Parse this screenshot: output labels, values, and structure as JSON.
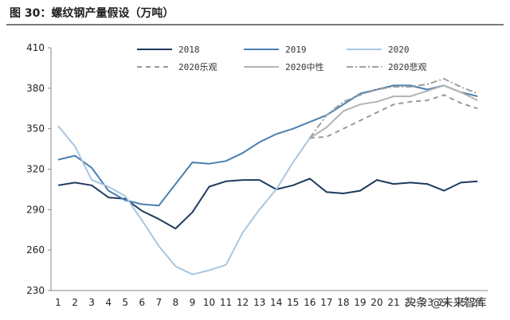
{
  "figure": {
    "title": "图 30：螺纹钢产量假设（万吨）"
  },
  "watermark": "头条 @未来智库",
  "chart_data": {
    "type": "line",
    "title": "图 30：螺纹钢产量假设（万吨）",
    "xlabel": "",
    "ylabel": "",
    "ylim": [
      230,
      410
    ],
    "yticks": [
      230,
      260,
      290,
      320,
      350,
      380,
      410
    ],
    "x": [
      1,
      2,
      3,
      4,
      5,
      6,
      7,
      8,
      9,
      10,
      11,
      12,
      13,
      14,
      15,
      16,
      17,
      18,
      19,
      20,
      21,
      22,
      23,
      24,
      25,
      26
    ],
    "xtick_labels": [
      "1",
      "2",
      "3",
      "4",
      "5",
      "6",
      "7",
      "8",
      "9",
      "10",
      "11",
      "12",
      "13",
      "14",
      "15",
      "16",
      "17",
      "18",
      "19",
      "20",
      "21",
      "22",
      "23",
      "24",
      "25",
      "26"
    ],
    "grid": false,
    "legend_position": "top",
    "series": [
      {
        "name": "2018",
        "color": "#1f3a5f",
        "dash": "solid",
        "x": [
          1,
          2,
          3,
          4,
          5,
          6,
          7,
          8,
          9,
          10,
          11,
          12,
          13,
          14,
          15,
          16,
          17,
          18,
          19,
          20,
          21,
          22,
          23,
          24,
          25,
          26
        ],
        "values": [
          308,
          310,
          308,
          299,
          298,
          289,
          283,
          276,
          288,
          307,
          311,
          312,
          312,
          305,
          308,
          313,
          303,
          302,
          304,
          312,
          309,
          310,
          309,
          304,
          310,
          311
        ]
      },
      {
        "name": "2019",
        "color": "#4a7fb0",
        "dash": "solid",
        "x": [
          1,
          2,
          3,
          4,
          5,
          6,
          7,
          8,
          9,
          10,
          11,
          12,
          13,
          14,
          15,
          16,
          17,
          18,
          19,
          20,
          21,
          22,
          23,
          24,
          25,
          26
        ],
        "values": [
          327,
          330,
          321,
          304,
          297,
          294,
          293,
          309,
          325,
          324,
          326,
          332,
          340,
          346,
          350,
          355,
          360,
          368,
          376,
          379,
          382,
          382,
          379,
          382,
          377,
          374
        ]
      },
      {
        "name": "2020",
        "color": "#a8c6e0",
        "dash": "solid",
        "x": [
          1,
          2,
          3,
          4,
          5,
          6,
          7,
          8,
          9,
          10,
          11,
          12,
          13,
          14,
          15,
          16
        ],
        "values": [
          352,
          337,
          312,
          307,
          300,
          282,
          263,
          248,
          242,
          245,
          249,
          273,
          290,
          305,
          325,
          343
        ]
      },
      {
        "name": "2020乐观",
        "color": "#9a9a9a",
        "dash": "dashed",
        "x": [
          16,
          17,
          18,
          19,
          20,
          21,
          22,
          23,
          24,
          25,
          26
        ],
        "values": [
          343,
          344,
          350,
          356,
          362,
          368,
          370,
          371,
          375,
          369,
          365
        ]
      },
      {
        "name": "2020中性",
        "color": "#b4b4b4",
        "dash": "solid",
        "x": [
          16,
          17,
          18,
          19,
          20,
          21,
          22,
          23,
          24,
          25,
          26
        ],
        "values": [
          343,
          351,
          363,
          368,
          370,
          374,
          374,
          378,
          382,
          377,
          371
        ]
      },
      {
        "name": "2020悲观",
        "color": "#a0a0a0",
        "dash": "dashdot",
        "x": [
          16,
          17,
          18,
          19,
          20,
          21,
          22,
          23,
          24,
          25,
          26
        ],
        "values": [
          343,
          360,
          370,
          375,
          379,
          381,
          381,
          383,
          387,
          381,
          376
        ]
      }
    ]
  }
}
